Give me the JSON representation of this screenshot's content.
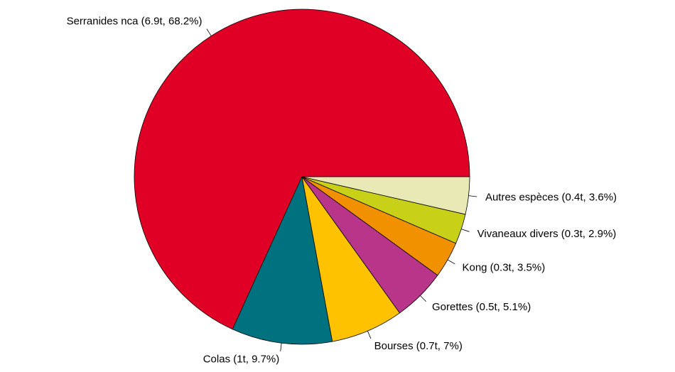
{
  "chart_data": {
    "type": "pie",
    "values": [
      68.2,
      9.7,
      7,
      5.1,
      3.5,
      2.9,
      3.6
    ],
    "value_labels": [
      "Serranides nca (6.9t, 68.2%)",
      "Colas (1t, 9.7%)",
      "Bourses (0.7t, 7%)",
      "Gorettes (0.5t, 5.1%)",
      "Kong (0.3t, 3.5%)",
      "Vivaneaux divers (0.3t, 2.9%)",
      "Autres espèces (0.4t, 3.6%)"
    ],
    "colors": [
      "#e00026",
      "#00717f",
      "#ffc200",
      "#b83589",
      "#f29100",
      "#c8d118",
      "#e9e9b5"
    ]
  }
}
